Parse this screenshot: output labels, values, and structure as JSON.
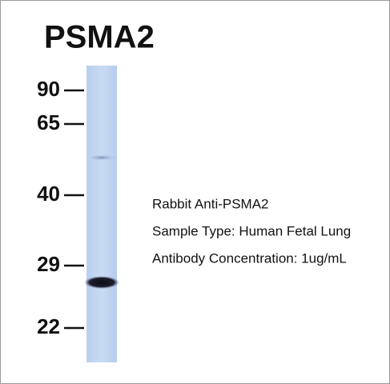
{
  "title": "PSMA2",
  "markers": [
    "90",
    "65",
    "40",
    "29",
    "22"
  ],
  "info": [
    "Rabbit Anti-PSMA2",
    "Sample Type: Human Fetal Lung",
    "Antibody Concentration: 1ug/mL"
  ]
}
